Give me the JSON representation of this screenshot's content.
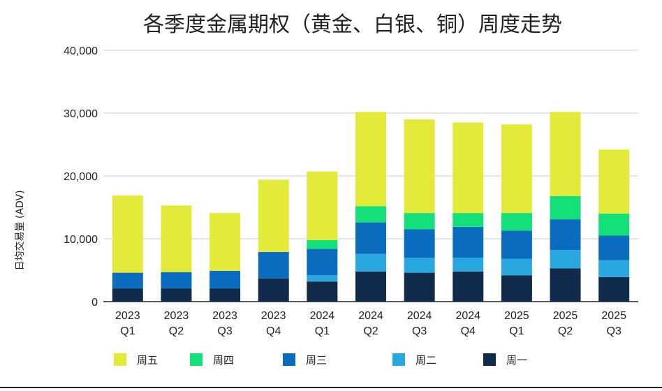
{
  "chart_data": {
    "type": "bar",
    "stacked": true,
    "title": "各季度金属期权（黄金、白银、铜）周度走势",
    "ylabel": "日均交易量 (ADV)",
    "xlabel": "",
    "ylim": [
      0,
      40000
    ],
    "yticks": [
      0,
      10000,
      20000,
      30000,
      40000
    ],
    "ytick_labels": [
      "0",
      "10,000",
      "20,000",
      "30,000",
      "40,000"
    ],
    "grid": true,
    "legend_position": "bottom",
    "categories": [
      [
        "2023",
        "Q1"
      ],
      [
        "2023",
        "Q2"
      ],
      [
        "2023",
        "Q3"
      ],
      [
        "2023",
        "Q4"
      ],
      [
        "2024",
        "Q1"
      ],
      [
        "2024",
        "Q2"
      ],
      [
        "2024",
        "Q3"
      ],
      [
        "2024",
        "Q4"
      ],
      [
        "2025",
        "Q1"
      ],
      [
        "2025",
        "Q2"
      ],
      [
        "2025",
        "Q3"
      ]
    ],
    "series": [
      {
        "name": "周一",
        "color": "#0f2a4a",
        "values": [
          2100,
          2100,
          2100,
          3700,
          3200,
          4800,
          4600,
          4800,
          4200,
          5300,
          3900
        ]
      },
      {
        "name": "周二",
        "color": "#29a8e0",
        "values": [
          0,
          0,
          0,
          0,
          1000,
          2800,
          2400,
          2200,
          2600,
          2900,
          2700
        ]
      },
      {
        "name": "周三",
        "color": "#0a6cbf",
        "values": [
          2500,
          2600,
          2800,
          4200,
          4200,
          5000,
          4500,
          4900,
          4500,
          4900,
          3900
        ]
      },
      {
        "name": "周四",
        "color": "#14e07a",
        "values": [
          0,
          0,
          0,
          0,
          1400,
          2600,
          2600,
          2200,
          2800,
          3700,
          3500
        ]
      },
      {
        "name": "周五",
        "color": "#e4ea3a",
        "values": [
          12300,
          10600,
          9200,
          11500,
          10900,
          15000,
          14900,
          14400,
          14100,
          13400,
          10200
        ]
      }
    ],
    "legend_order": [
      "周五",
      "周四",
      "周三",
      "周二",
      "周一"
    ]
  }
}
